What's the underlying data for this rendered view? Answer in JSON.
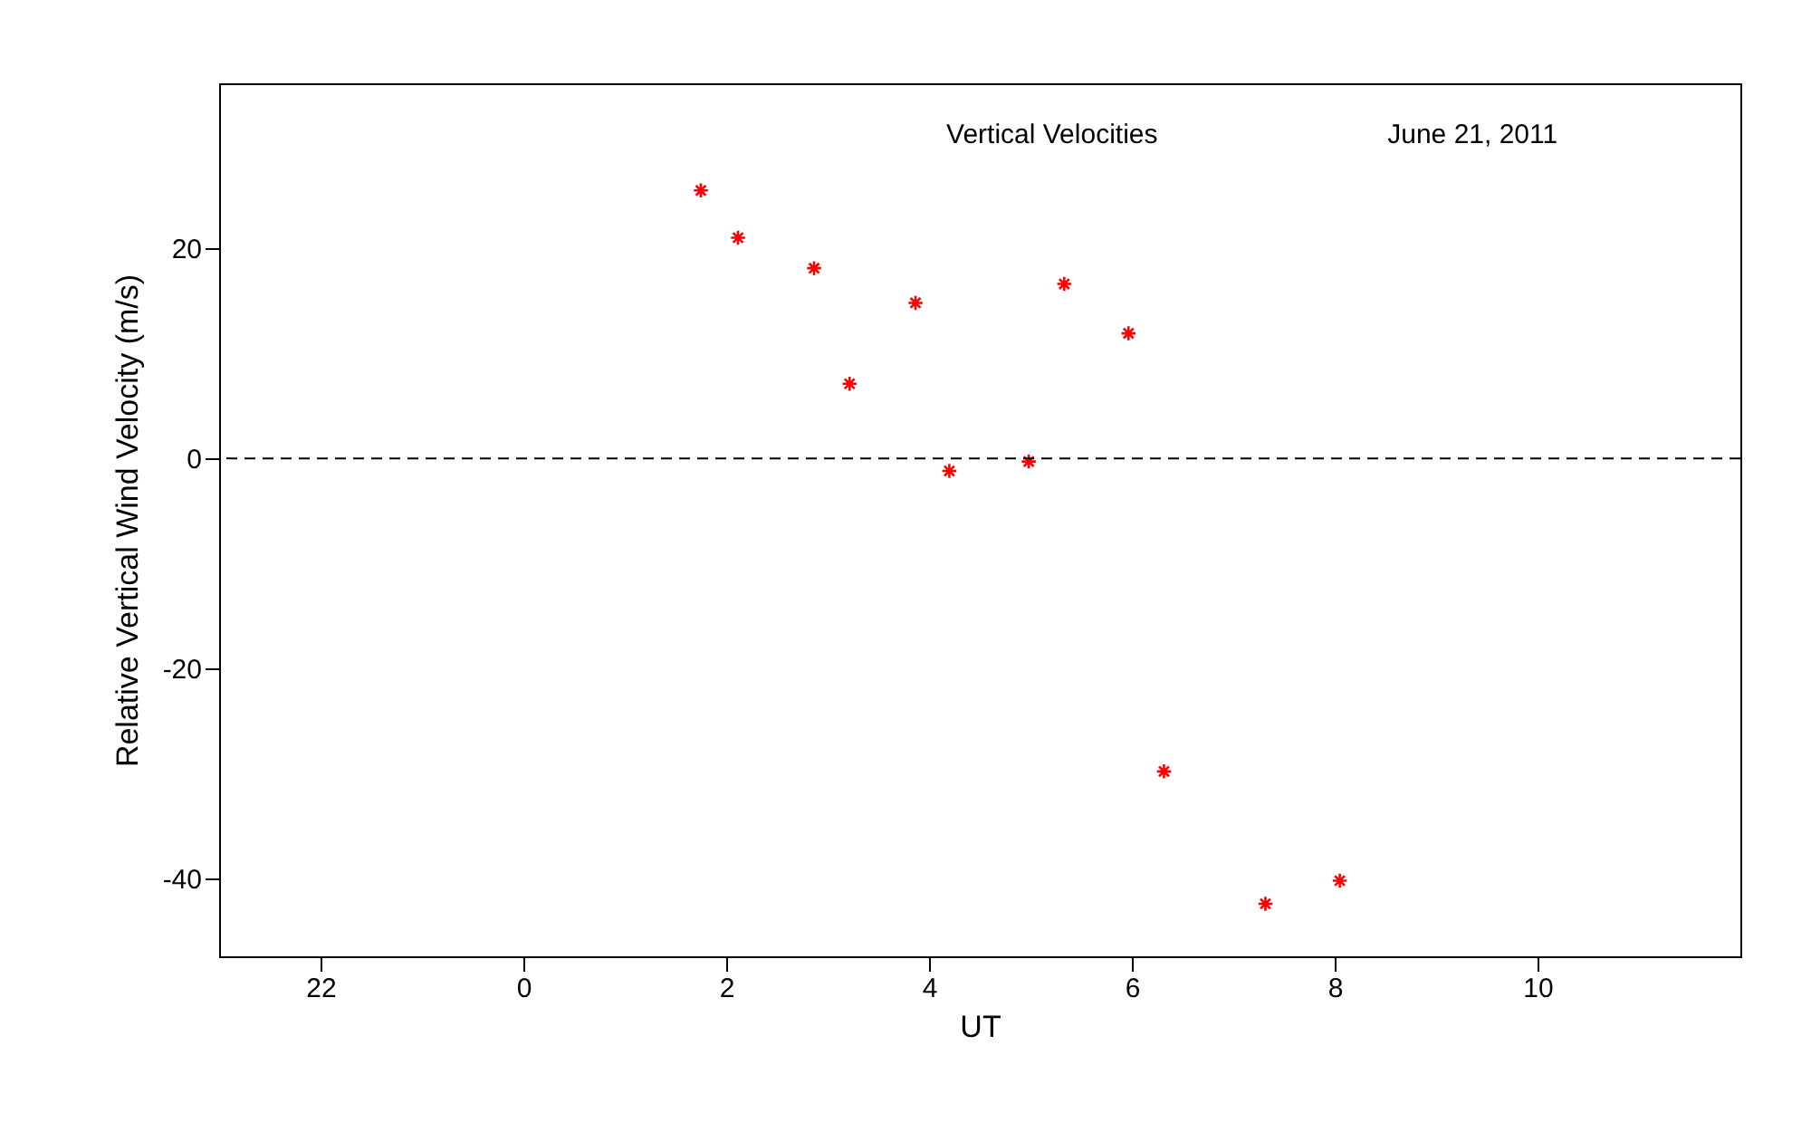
{
  "chart_data": {
    "type": "scatter",
    "xlabel": "UT",
    "ylabel": "Relative Vertical Wind Velocity (m/s)",
    "annotations": [
      "Vertical Velocities",
      "June 21, 2011"
    ],
    "x": [
      "2011-06-21T01:45",
      "2011-06-21T02:07",
      "2011-06-21T02:52",
      "2011-06-21T03:13",
      "2011-06-21T03:52",
      "2011-06-21T04:12",
      "2011-06-21T04:59",
      "2011-06-21T05:20",
      "2011-06-21T05:58",
      "2011-06-21T06:19",
      "2011-06-21T07:19",
      "2011-06-21T08:03"
    ],
    "series": [
      {
        "color": "#ff0000",
        "values": [
          25.5,
          21.0,
          18.1,
          7.1,
          14.8,
          -1.2,
          -0.3,
          16.6,
          11.9,
          -29.8,
          -42.4,
          -40.2
        ]
      }
    ],
    "marker": "cross",
    "xlim": [
      "2011-06-20T21:00",
      "2011-06-21T12:00"
    ],
    "xticks": [
      {
        "value": "2011-06-20T22:00",
        "label": "22"
      },
      {
        "value": "2011-06-21T00:00",
        "label": "0"
      },
      {
        "value": "2011-06-21T02:00",
        "label": "2"
      },
      {
        "value": "2011-06-21T04:00",
        "label": "4"
      },
      {
        "value": "2011-06-21T06:00",
        "label": "6"
      },
      {
        "value": "2011-06-21T08:00",
        "label": "8"
      },
      {
        "value": "2011-06-21T10:00",
        "label": "10"
      }
    ],
    "ylim": [
      -47.4,
      35.7
    ],
    "yticks": [
      -40,
      -20,
      0,
      20
    ],
    "ref_lines": [
      {
        "axis": "y",
        "value": 0,
        "line_style": "dashed",
        "color": "#000000"
      }
    ],
    "grid": false
  }
}
